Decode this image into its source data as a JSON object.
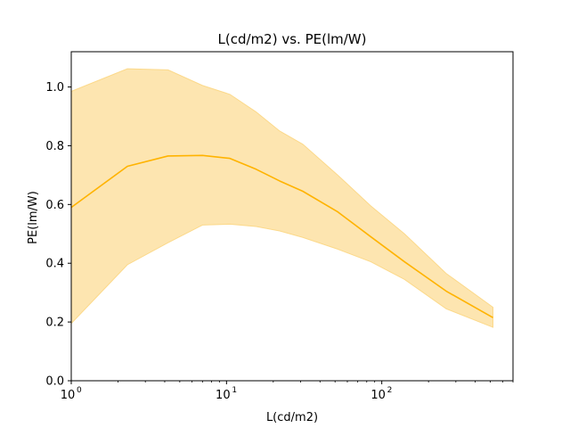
{
  "chart_data": {
    "type": "line",
    "title": "L(cd/m2) vs. PE(lm/W)",
    "xlabel": "L(cd/m2)",
    "ylabel": "PE(lm/W)",
    "xscale": "log",
    "xlim": [
      1,
      700
    ],
    "ylim": [
      0,
      1.12
    ],
    "grid": false,
    "legend": "none",
    "x_ticks": [
      {
        "value": 1,
        "label": "10",
        "exp": "0"
      },
      {
        "value": 10,
        "label": "10",
        "exp": "1"
      },
      {
        "value": 100,
        "label": "10",
        "exp": "2"
      }
    ],
    "y_ticks": [
      {
        "value": 0.0,
        "label": "0.0"
      },
      {
        "value": 0.2,
        "label": "0.2"
      },
      {
        "value": 0.4,
        "label": "0.4"
      },
      {
        "value": 0.6,
        "label": "0.6"
      },
      {
        "value": 0.8,
        "label": "0.8"
      },
      {
        "value": 1.0,
        "label": "1.0"
      }
    ],
    "colors": {
      "line": "#ffb300",
      "band": "#fde5b0",
      "band_edge": "#fcd98a"
    },
    "series": [
      {
        "x": [
          1.0,
          2.3,
          4.2,
          7.0,
          10.5,
          15.5,
          22,
          31,
          52,
          85,
          140,
          260,
          520
        ],
        "y": [
          0.59,
          0.73,
          0.765,
          0.767,
          0.757,
          0.72,
          0.68,
          0.645,
          0.575,
          0.49,
          0.405,
          0.305,
          0.215
        ],
        "upper": [
          0.985,
          1.062,
          1.058,
          1.005,
          0.975,
          0.915,
          0.85,
          0.805,
          0.7,
          0.595,
          0.5,
          0.365,
          0.25
        ],
        "lower": [
          0.195,
          0.395,
          0.47,
          0.53,
          0.533,
          0.525,
          0.51,
          0.488,
          0.448,
          0.405,
          0.345,
          0.245,
          0.182
        ]
      }
    ]
  }
}
